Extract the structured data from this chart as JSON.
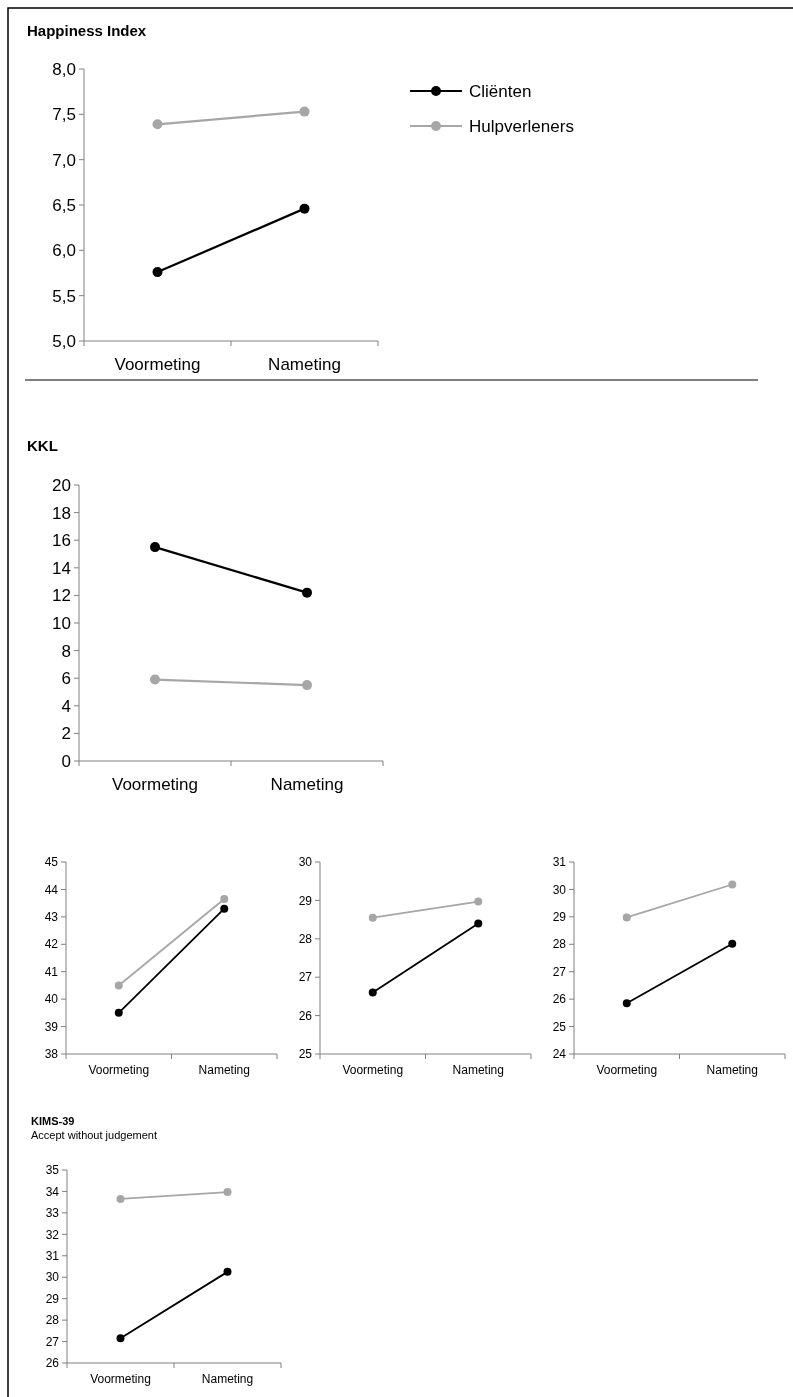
{
  "chart_data": [
    {
      "type": "line",
      "title": "Happiness Index",
      "categories": [
        "Voormeting",
        "Nameting"
      ],
      "ylim": [
        5,
        8
      ],
      "yticks": [
        {
          "value": 5,
          "label": "5,0"
        },
        {
          "value": 5.5,
          "label": "5,5"
        },
        {
          "value": 6,
          "label": "6,0"
        },
        {
          "value": 6.5,
          "label": "6,5"
        },
        {
          "value": 7,
          "label": "7,0"
        },
        {
          "value": 7.5,
          "label": "7,5"
        },
        {
          "value": 8,
          "label": "8,0"
        }
      ],
      "legend": "right",
      "marker": "circle",
      "series": [
        {
          "name": "Cliënten",
          "color": "#000000",
          "values": [
            5.76,
            6.46
          ]
        },
        {
          "name": "Hulpverleners",
          "color": "#a6a6a6",
          "values": [
            7.39,
            7.53
          ]
        }
      ]
    },
    {
      "type": "line",
      "title": "KKL",
      "categories": [
        "Voormeting",
        "Nameting"
      ],
      "ylim": [
        0,
        20
      ],
      "yticks": [
        0,
        2,
        4,
        6,
        8,
        10,
        12,
        14,
        16,
        18,
        20
      ],
      "marker": "circle",
      "series": [
        {
          "color": "#000000",
          "values": [
            15.5,
            12.2
          ]
        },
        {
          "color": "#a6a6a6",
          "values": [
            5.9,
            5.5
          ]
        }
      ]
    },
    {
      "type": "line",
      "categories": [
        "Voormeting",
        "Nameting"
      ],
      "ylim": [
        38,
        45
      ],
      "yticks": [
        38,
        39,
        40,
        41,
        42,
        43,
        44,
        45
      ],
      "marker": "circle",
      "series": [
        {
          "color": "#000000",
          "values": [
            39.5,
            43.3
          ]
        },
        {
          "color": "#a6a6a6",
          "values": [
            40.5,
            43.65
          ]
        }
      ]
    },
    {
      "type": "line",
      "categories": [
        "Voormeting",
        "Nameting"
      ],
      "ylim": [
        25,
        30
      ],
      "yticks": [
        25,
        26,
        27,
        28,
        29,
        30
      ],
      "marker": "circle",
      "series": [
        {
          "color": "#000000",
          "values": [
            26.6,
            28.4
          ]
        },
        {
          "color": "#a6a6a6",
          "values": [
            28.55,
            28.97
          ]
        }
      ]
    },
    {
      "type": "line",
      "categories": [
        "Voormeting",
        "Nameting"
      ],
      "ylim": [
        24,
        31
      ],
      "yticks": [
        24,
        25,
        26,
        27,
        28,
        29,
        30,
        31
      ],
      "marker": "circle",
      "series": [
        {
          "color": "#000000",
          "values": [
            25.85,
            28.02
          ]
        },
        {
          "color": "#a6a6a6",
          "values": [
            28.98,
            30.18
          ]
        }
      ]
    },
    {
      "type": "line",
      "title": "KIMS-39",
      "subtitle": "Accept without judgement",
      "categories": [
        "Voormeting",
        "Nameting"
      ],
      "ylim": [
        26,
        35
      ],
      "yticks": [
        26,
        27,
        28,
        29,
        30,
        31,
        32,
        33,
        34,
        35
      ],
      "marker": "circle",
      "series": [
        {
          "color": "#000000",
          "values": [
            27.15,
            30.25
          ]
        },
        {
          "color": "#a6a6a6",
          "values": [
            33.65,
            33.97
          ]
        }
      ]
    }
  ]
}
